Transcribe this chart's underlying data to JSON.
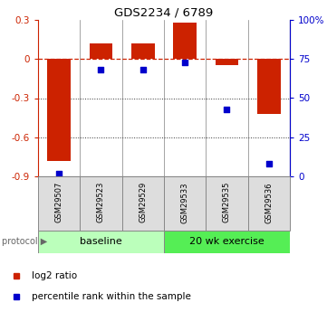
{
  "title": "GDS2234 / 6789",
  "samples": [
    "GSM29507",
    "GSM29523",
    "GSM29529",
    "GSM29533",
    "GSM29535",
    "GSM29536"
  ],
  "log2_ratio": [
    -0.78,
    0.12,
    0.12,
    0.28,
    -0.05,
    -0.42
  ],
  "percentile_rank": [
    2,
    68,
    68,
    73,
    43,
    8
  ],
  "ylim_left": [
    -0.9,
    0.3
  ],
  "ylim_right": [
    0,
    100
  ],
  "yticks_left": [
    -0.9,
    -0.6,
    -0.3,
    0.0,
    0.3
  ],
  "yticks_right": [
    0,
    25,
    50,
    75,
    100
  ],
  "ytick_labels_right": [
    "0",
    "25",
    "50",
    "75",
    "100%"
  ],
  "bar_color": "#cc2200",
  "dot_color": "#0000cc",
  "dashed_line_color": "#cc2200",
  "dotted_line_color": "#333333",
  "baseline_color": "#bbffbb",
  "exercise_color": "#55ee55",
  "protocol_labels": [
    "baseline",
    "20 wk exercise"
  ],
  "legend_bar_label": "log2 ratio",
  "legend_dot_label": "percentile rank within the sample",
  "protocol_text": "protocol"
}
